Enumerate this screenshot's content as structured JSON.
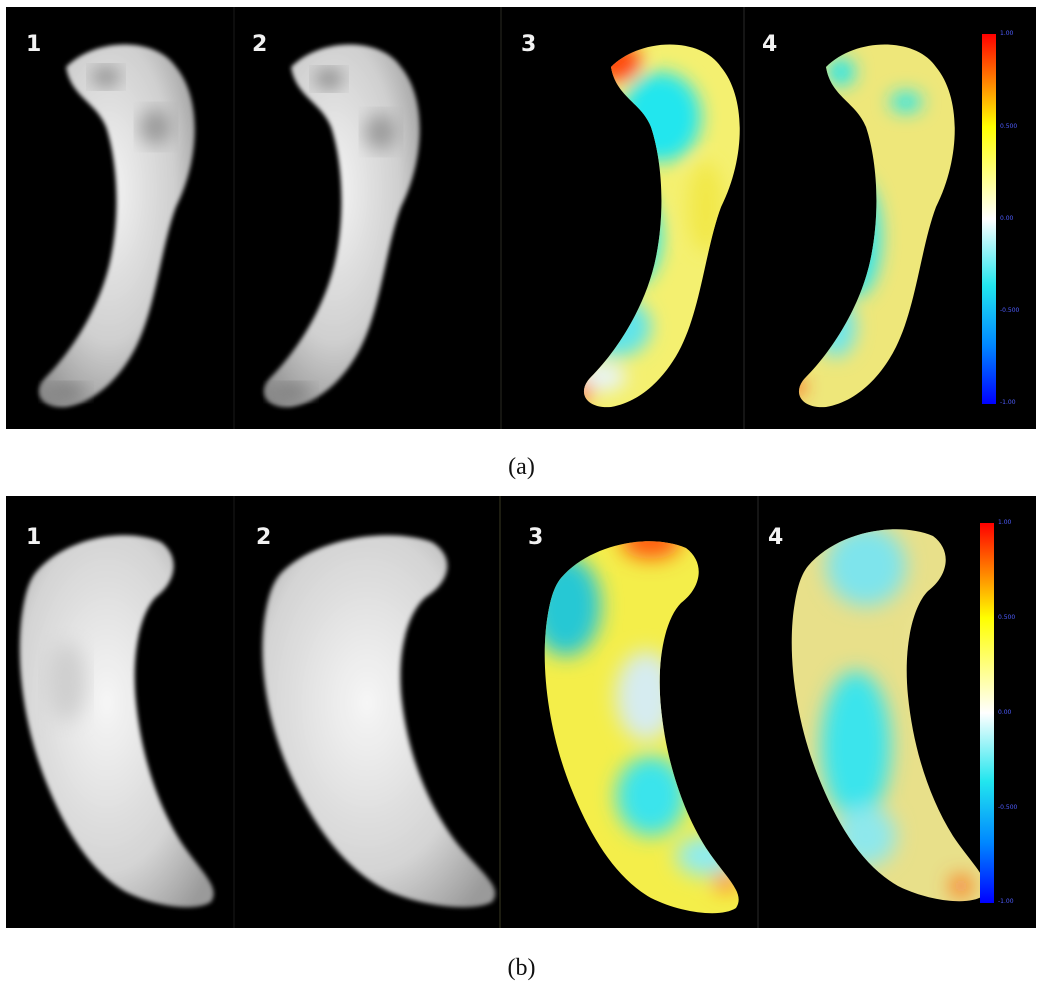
{
  "rows": [
    {
      "caption": "(a)",
      "panels": [
        {
          "number": "1"
        },
        {
          "number": "2"
        },
        {
          "number": "3"
        },
        {
          "number": "4"
        }
      ],
      "colorbar": {
        "ticks": [
          "1.00",
          "0.500",
          "0.00",
          "-0.500",
          "-1.00"
        ]
      }
    },
    {
      "caption": "(b)",
      "panels": [
        {
          "number": "1"
        },
        {
          "number": "2"
        },
        {
          "number": "3"
        },
        {
          "number": "4"
        }
      ],
      "colorbar": {
        "ticks": [
          "1.00",
          "0.500",
          "0.00",
          "-0.500",
          "-1.00"
        ]
      }
    }
  ],
  "colors": {
    "background": "#000000",
    "surface_gray": "#e6e6e6",
    "colormap": [
      "#ff0000",
      "#ffa000",
      "#ffff00",
      "#ffffff",
      "#22e6ee",
      "#0077ff",
      "#0000ff"
    ],
    "tick_text": "#4f5dff"
  }
}
